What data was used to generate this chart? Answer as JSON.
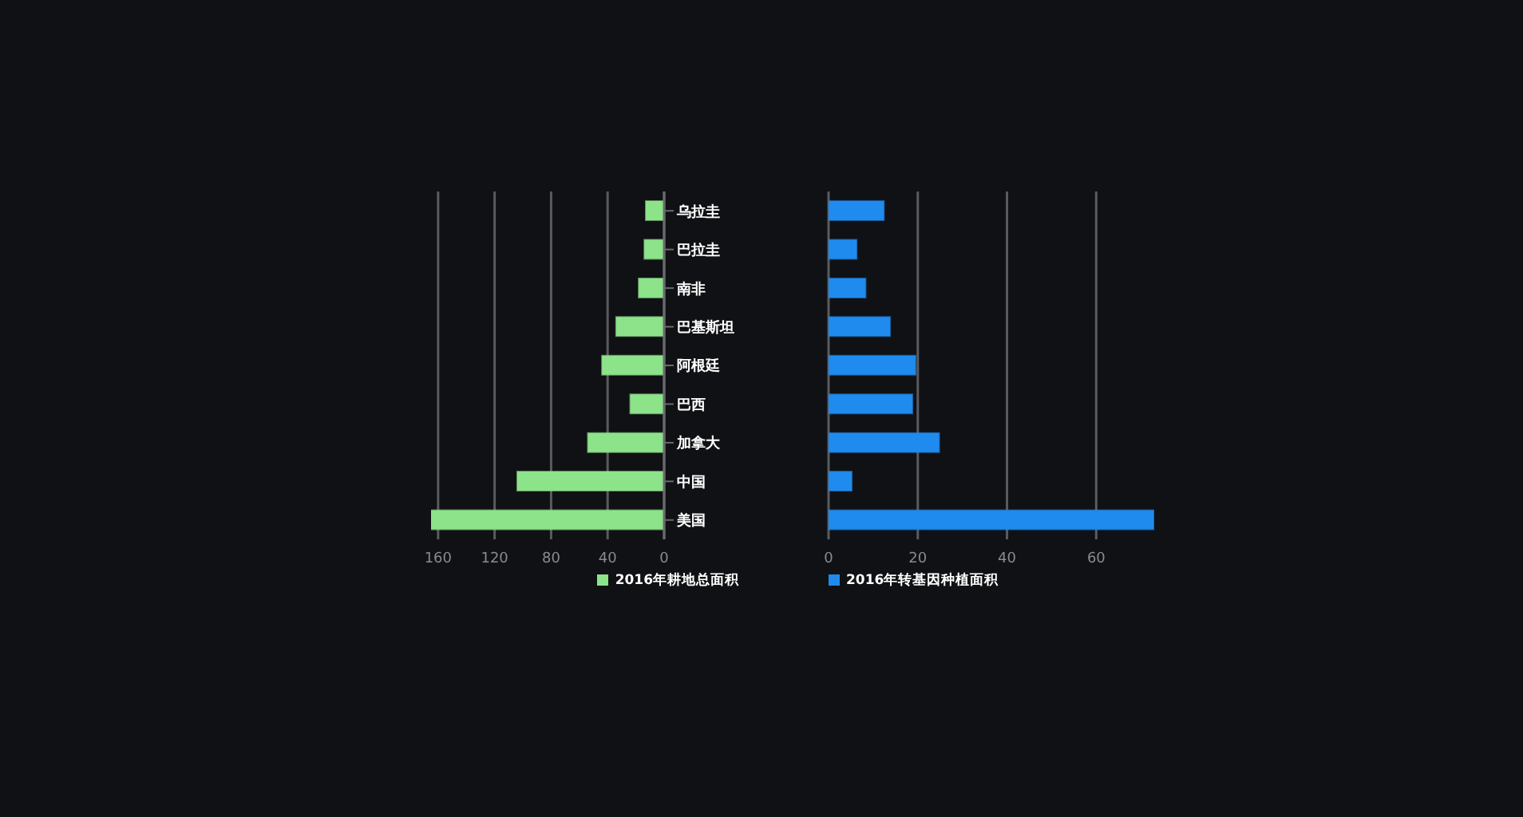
{
  "chart_data": [
    {
      "type": "bar",
      "orientation": "horizontal",
      "categories": [
        "乌拉圭",
        "巴拉圭",
        "南非",
        "巴基斯坦",
        "阿根廷",
        "巴西",
        "加拿大",
        "中国",
        "美国"
      ],
      "series": [
        {
          "name": "2016年耕地总面积",
          "color": "#8de38a",
          "values": [
            13,
            14,
            18,
            34,
            44,
            24,
            54,
            104,
            165
          ]
        }
      ],
      "xlim": [
        165,
        0
      ],
      "xticks": [
        160,
        120,
        80,
        40,
        0
      ],
      "grid": "x",
      "legend": "bottom"
    },
    {
      "type": "bar",
      "orientation": "horizontal",
      "series": [
        {
          "name": "2016年转基因种植面积",
          "color": "#1f8bee",
          "values": [
            12.4,
            6.3,
            8.3,
            13.8,
            19.5,
            18.8,
            24.8,
            5.2,
            72.9
          ]
        }
      ],
      "xlim": [
        0,
        73
      ],
      "xticks": [
        0,
        20,
        40,
        60
      ],
      "grid": "x",
      "legend": "bottom",
      "tick_labels": "x"
    }
  ]
}
